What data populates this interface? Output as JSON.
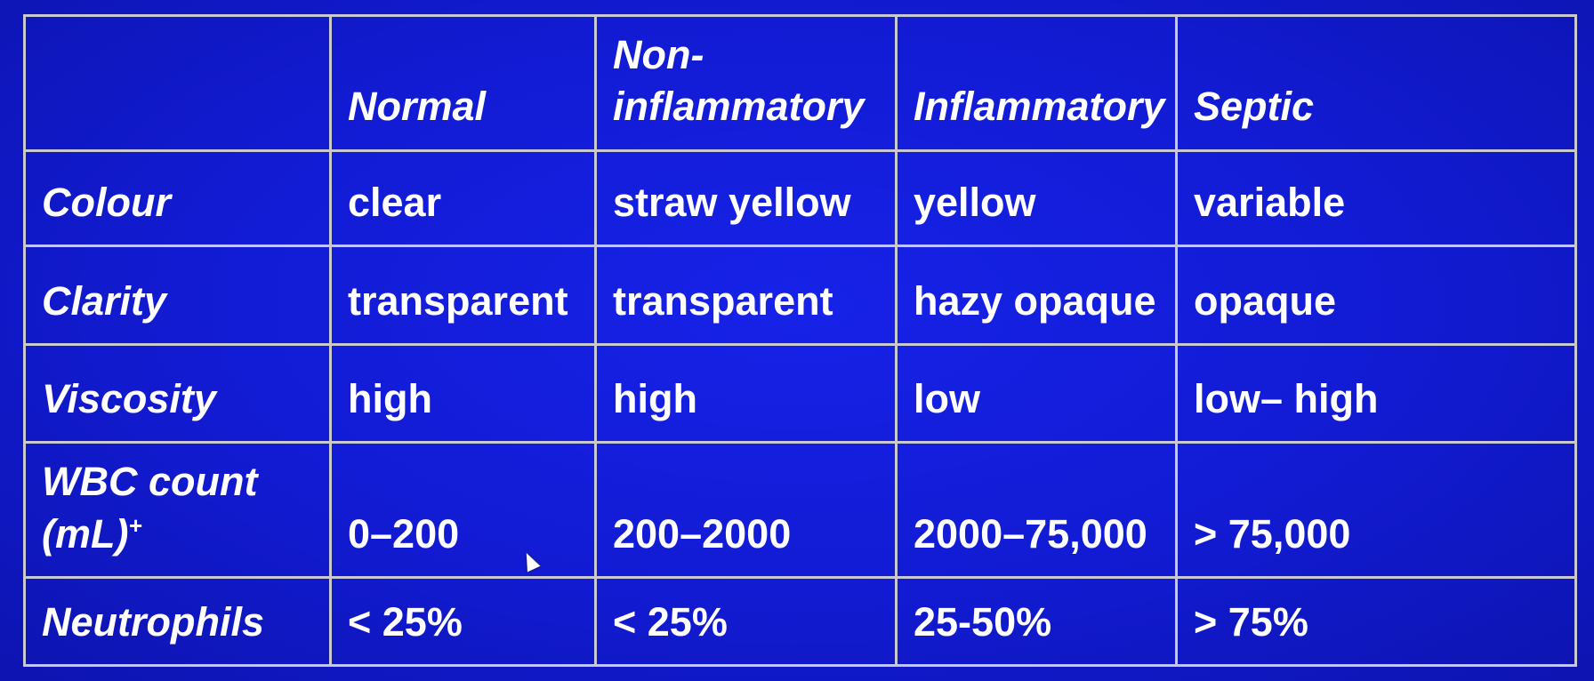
{
  "table": {
    "headers": [
      "",
      "Normal",
      "Non-inflammatory",
      "Inflammatory",
      "Septic"
    ],
    "rows": [
      {
        "label": "Colour",
        "cells": [
          "clear",
          "straw yellow",
          "yellow",
          "variable"
        ]
      },
      {
        "label": "Clarity",
        "cells": [
          "transparent",
          "transparent",
          "hazy opaque",
          "opaque"
        ]
      },
      {
        "label": "Viscosity",
        "cells": [
          "high",
          "high",
          "low",
          "low– high"
        ]
      },
      {
        "label": "WBC count (mL)",
        "label_sup": "+",
        "cells": [
          "0–200",
          "200–2000",
          "2000–75,000",
          "> 75,000"
        ]
      },
      {
        "label": "Neutrophils",
        "cells": [
          "< 25%",
          "< 25%",
          "25-50%",
          "> 75%"
        ]
      }
    ]
  },
  "colors": {
    "background": "#121bd2",
    "text": "#ffffff",
    "normal_column": "#f0a048",
    "grid_lines": "#c9c9d2"
  }
}
